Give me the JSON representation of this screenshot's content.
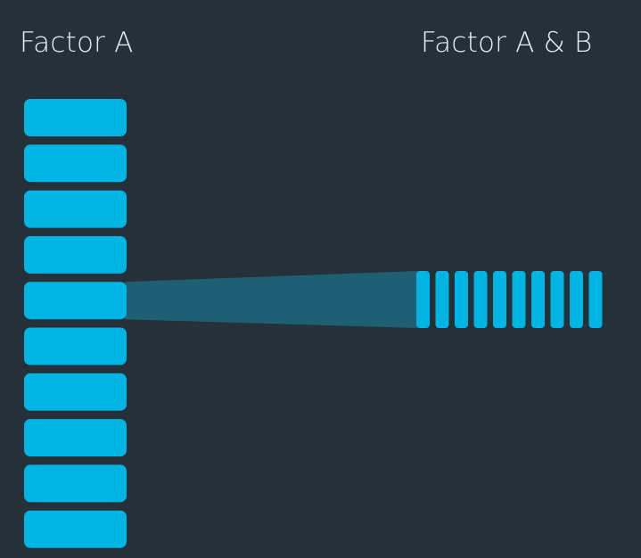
{
  "labels": {
    "left": "Factor A",
    "right": "Factor A & B"
  },
  "diagram": {
    "left_column_count": 10,
    "highlighted_index": 4,
    "right_group_count": 10
  },
  "colors": {
    "background": "#263039",
    "block": "#00b4e4",
    "connector": "#1f5f74",
    "text": "#e8edf0"
  }
}
